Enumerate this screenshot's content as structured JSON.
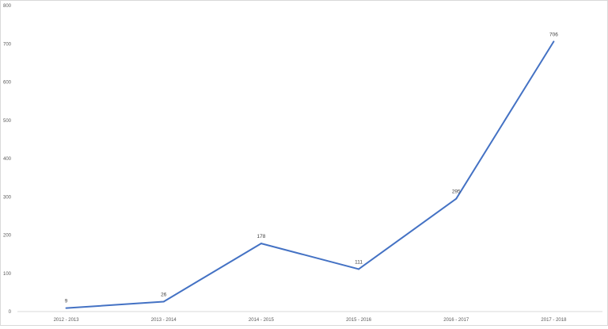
{
  "chart_data": {
    "type": "line",
    "title": "",
    "xlabel": "",
    "ylabel": "",
    "categories": [
      "2012 - 2013",
      "2013 - 2014",
      "2014 - 2015",
      "2015 - 2016",
      "2016 - 2017",
      "2017 - 2018"
    ],
    "values": [
      9,
      26,
      178,
      111,
      295,
      706
    ],
    "data_labels": [
      "9",
      "26",
      "178",
      "111",
      "295",
      "706"
    ],
    "ylim": [
      0,
      800
    ],
    "yticks": [
      "0",
      "100",
      "200",
      "300",
      "400",
      "500",
      "600",
      "700",
      "800"
    ],
    "grid": false,
    "legend": "none",
    "line_color": "#4472c4"
  }
}
